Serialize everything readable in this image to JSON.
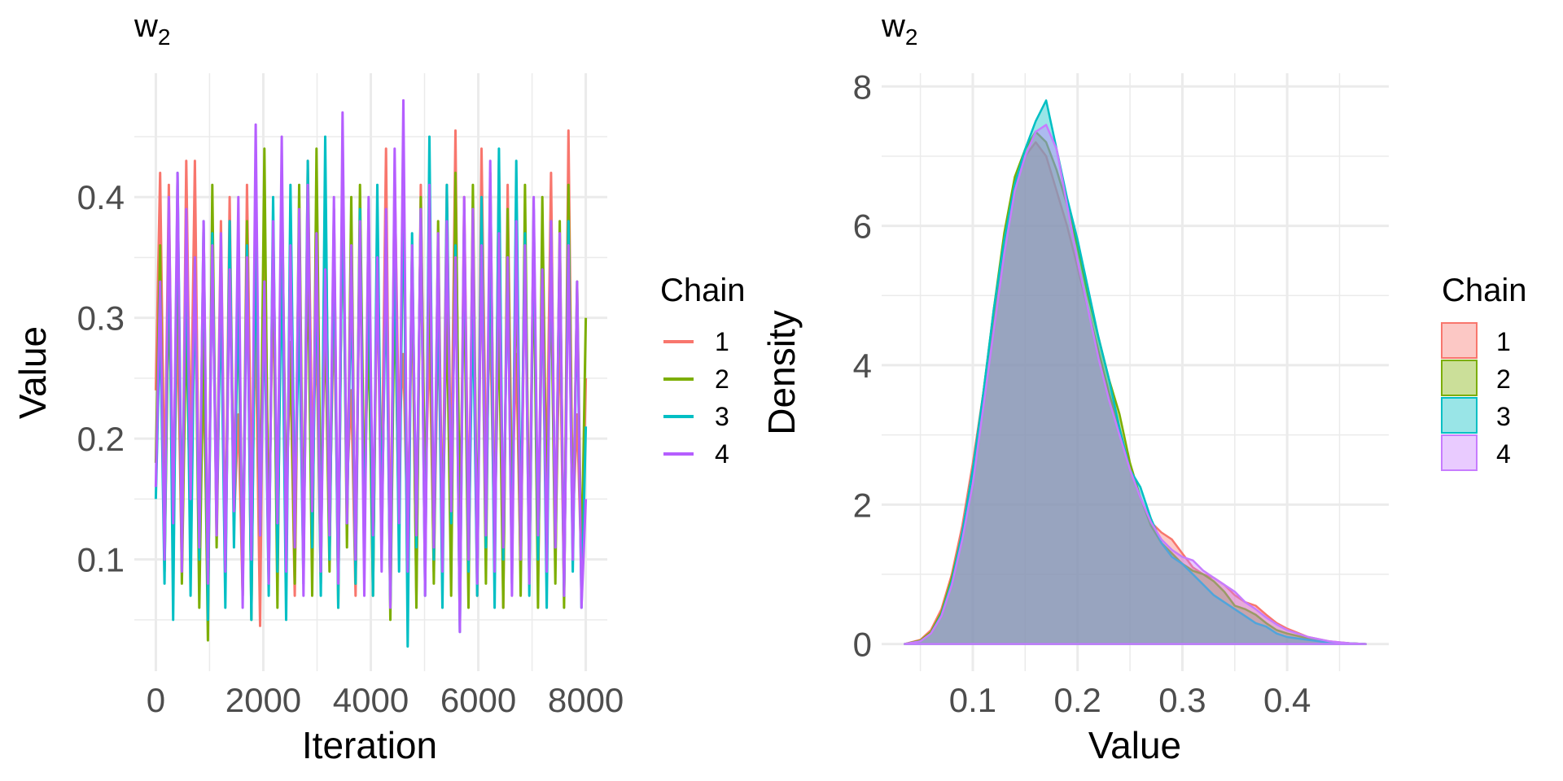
{
  "chart_data": [
    {
      "type": "line",
      "title": "w",
      "title_subscript": "2",
      "xlabel": "Iteration",
      "ylabel": "Value",
      "xlim": [
        0,
        8000
      ],
      "ylim": [
        0.03,
        0.48
      ],
      "xticks": [
        0,
        2000,
        4000,
        6000,
        8000
      ],
      "xtick_labels": [
        "0",
        "2000",
        "4000",
        "6000",
        "8000"
      ],
      "yticks": [
        0.1,
        0.2,
        0.3,
        0.4
      ],
      "ytick_labels": [
        "0.1",
        "0.2",
        "0.3",
        "0.4"
      ],
      "grid": true,
      "legend": {
        "title": "Chain",
        "position": "right"
      },
      "series": [
        {
          "name": "1",
          "color": "#F8766D",
          "values": [
            0.24,
            0.42,
            0.15,
            0.41,
            0.12,
            0.3,
            0.09,
            0.43,
            0.18,
            0.43,
            0.11,
            0.25,
            0.08,
            0.37,
            0.14,
            0.38,
            0.1,
            0.4,
            0.13,
            0.22,
            0.07,
            0.41,
            0.16,
            0.29,
            0.045,
            0.4,
            0.12,
            0.33,
            0.09,
            0.39,
            0.15,
            0.26,
            0.07,
            0.36,
            0.11,
            0.43,
            0.19,
            0.28,
            0.08,
            0.42,
            0.13,
            0.31,
            0.1,
            0.4,
            0.16,
            0.24,
            0.07,
            0.38,
            0.12,
            0.39,
            0.09,
            0.34,
            0.15,
            0.44,
            0.08,
            0.42,
            0.2,
            0.27,
            0.11,
            0.33,
            0.07,
            0.41,
            0.14,
            0.29,
            0.09,
            0.3,
            0.12,
            0.41,
            0.16,
            0.455,
            0.08,
            0.4,
            0.13,
            0.35,
            0.07,
            0.44,
            0.18,
            0.3,
            0.1,
            0.43,
            0.06,
            0.41,
            0.15,
            0.27,
            0.09,
            0.36,
            0.12,
            0.38,
            0.08,
            0.33,
            0.17,
            0.42,
            0.1,
            0.3,
            0.07,
            0.455,
            0.13,
            0.22,
            0.09,
            0.25
          ]
        },
        {
          "name": "2",
          "color": "#7CAE00",
          "values": [
            0.18,
            0.36,
            0.09,
            0.33,
            0.14,
            0.38,
            0.08,
            0.3,
            0.12,
            0.35,
            0.06,
            0.29,
            0.033,
            0.41,
            0.11,
            0.34,
            0.08,
            0.36,
            0.15,
            0.31,
            0.07,
            0.38,
            0.05,
            0.39,
            0.12,
            0.44,
            0.09,
            0.37,
            0.06,
            0.42,
            0.14,
            0.28,
            0.08,
            0.41,
            0.1,
            0.36,
            0.07,
            0.44,
            0.13,
            0.3,
            0.09,
            0.39,
            0.06,
            0.43,
            0.11,
            0.4,
            0.08,
            0.41,
            0.15,
            0.29,
            0.07,
            0.37,
            0.1,
            0.38,
            0.05,
            0.33,
            0.12,
            0.41,
            0.09,
            0.36,
            0.06,
            0.4,
            0.14,
            0.35,
            0.08,
            0.38,
            0.11,
            0.31,
            0.07,
            0.42,
            0.13,
            0.34,
            0.06,
            0.41,
            0.1,
            0.37,
            0.08,
            0.42,
            0.12,
            0.3,
            0.06,
            0.39,
            0.11,
            0.35,
            0.07,
            0.41,
            0.09,
            0.36,
            0.06,
            0.4,
            0.13,
            0.34,
            0.08,
            0.38,
            0.06,
            0.41,
            0.11,
            0.33,
            0.09,
            0.3
          ]
        },
        {
          "name": "3",
          "color": "#00BFC4",
          "values": [
            0.15,
            0.3,
            0.08,
            0.39,
            0.05,
            0.42,
            0.12,
            0.36,
            0.07,
            0.34,
            0.1,
            0.38,
            0.05,
            0.37,
            0.13,
            0.32,
            0.06,
            0.38,
            0.11,
            0.33,
            0.08,
            0.36,
            0.05,
            0.37,
            0.12,
            0.31,
            0.07,
            0.4,
            0.09,
            0.36,
            0.05,
            0.41,
            0.14,
            0.3,
            0.08,
            0.43,
            0.11,
            0.35,
            0.07,
            0.45,
            0.1,
            0.37,
            0.06,
            0.42,
            0.13,
            0.33,
            0.08,
            0.39,
            0.1,
            0.36,
            0.07,
            0.41,
            0.12,
            0.34,
            0.06,
            0.38,
            0.09,
            0.44,
            0.028,
            0.37,
            0.11,
            0.39,
            0.07,
            0.45,
            0.1,
            0.33,
            0.06,
            0.41,
            0.13,
            0.36,
            0.04,
            0.39,
            0.09,
            0.32,
            0.07,
            0.4,
            0.11,
            0.38,
            0.06,
            0.44,
            0.1,
            0.35,
            0.08,
            0.43,
            0.12,
            0.37,
            0.07,
            0.39,
            0.1,
            0.34,
            0.06,
            0.38,
            0.11,
            0.36,
            0.07,
            0.38,
            0.09,
            0.32,
            0.06,
            0.21
          ]
        },
        {
          "name": "4",
          "color": "#B55EFF",
          "values": [
            0.16,
            0.33,
            0.1,
            0.4,
            0.13,
            0.42,
            0.09,
            0.39,
            0.15,
            0.35,
            0.11,
            0.38,
            0.08,
            0.36,
            0.12,
            0.37,
            0.09,
            0.34,
            0.14,
            0.4,
            0.06,
            0.35,
            0.1,
            0.46,
            0.12,
            0.33,
            0.08,
            0.38,
            0.13,
            0.45,
            0.09,
            0.36,
            0.11,
            0.39,
            0.07,
            0.41,
            0.14,
            0.37,
            0.09,
            0.34,
            0.12,
            0.4,
            0.08,
            0.47,
            0.13,
            0.36,
            0.1,
            0.38,
            0.07,
            0.4,
            0.12,
            0.35,
            0.09,
            0.39,
            0.06,
            0.44,
            0.13,
            0.48,
            0.09,
            0.36,
            0.12,
            0.39,
            0.07,
            0.41,
            0.11,
            0.37,
            0.09,
            0.38,
            0.14,
            0.35,
            0.04,
            0.4,
            0.1,
            0.39,
            0.08,
            0.36,
            0.12,
            0.43,
            0.09,
            0.37,
            0.11,
            0.35,
            0.07,
            0.38,
            0.1,
            0.36,
            0.08,
            0.4,
            0.12,
            0.34,
            0.09,
            0.38,
            0.11,
            0.37,
            0.07,
            0.36,
            0.1,
            0.33,
            0.06,
            0.15
          ]
        }
      ]
    },
    {
      "type": "area",
      "title": "w",
      "title_subscript": "2",
      "xlabel": "Value",
      "ylabel": "Density",
      "xlim": [
        0.035,
        0.475
      ],
      "ylim": [
        0,
        7.8
      ],
      "xticks": [
        0.1,
        0.2,
        0.3,
        0.4
      ],
      "xtick_labels": [
        "0.1",
        "0.2",
        "0.3",
        "0.4"
      ],
      "yticks": [
        0,
        2,
        4,
        6,
        8
      ],
      "ytick_labels": [
        "0",
        "2",
        "4",
        "6",
        "8"
      ],
      "grid": true,
      "fill_alpha": 0.4,
      "legend": {
        "title": "Chain",
        "position": "right"
      },
      "x": [
        0.035,
        0.05,
        0.06,
        0.07,
        0.08,
        0.09,
        0.1,
        0.11,
        0.12,
        0.13,
        0.14,
        0.15,
        0.16,
        0.17,
        0.18,
        0.19,
        0.2,
        0.21,
        0.22,
        0.23,
        0.24,
        0.25,
        0.26,
        0.27,
        0.28,
        0.29,
        0.3,
        0.31,
        0.32,
        0.33,
        0.34,
        0.35,
        0.36,
        0.37,
        0.38,
        0.39,
        0.4,
        0.42,
        0.44,
        0.46,
        0.475
      ],
      "series": [
        {
          "name": "1",
          "color": "#F8766D",
          "values": [
            0,
            0.06,
            0.2,
            0.5,
            1.0,
            1.7,
            2.6,
            3.6,
            4.7,
            5.8,
            6.6,
            7.0,
            7.2,
            7.0,
            6.5,
            6.0,
            5.4,
            4.8,
            4.2,
            3.6,
            3.1,
            2.5,
            2.1,
            1.75,
            1.6,
            1.5,
            1.3,
            1.1,
            1.0,
            0.95,
            0.85,
            0.7,
            0.6,
            0.55,
            0.42,
            0.3,
            0.22,
            0.1,
            0.04,
            0.01,
            0
          ]
        },
        {
          "name": "2",
          "color": "#7CAE00",
          "values": [
            0,
            0.05,
            0.17,
            0.45,
            0.95,
            1.6,
            2.5,
            3.6,
            4.8,
            5.9,
            6.7,
            7.1,
            7.35,
            7.2,
            6.8,
            6.3,
            5.7,
            5.0,
            4.4,
            3.8,
            3.3,
            2.6,
            2.1,
            1.7,
            1.45,
            1.3,
            1.15,
            1.05,
            1.0,
            0.9,
            0.75,
            0.55,
            0.5,
            0.42,
            0.3,
            0.2,
            0.15,
            0.08,
            0.03,
            0.01,
            0
          ]
        },
        {
          "name": "3",
          "color": "#00BFC4",
          "values": [
            0,
            0.04,
            0.15,
            0.42,
            0.9,
            1.6,
            2.5,
            3.6,
            4.8,
            5.8,
            6.6,
            7.1,
            7.5,
            7.8,
            7.1,
            6.4,
            5.8,
            5.1,
            4.4,
            3.8,
            3.1,
            2.5,
            2.25,
            1.8,
            1.45,
            1.25,
            1.15,
            1.0,
            0.85,
            0.7,
            0.6,
            0.5,
            0.4,
            0.3,
            0.25,
            0.15,
            0.1,
            0.06,
            0.02,
            0.01,
            0
          ]
        },
        {
          "name": "4",
          "color": "#C77CFF",
          "values": [
            0,
            0.04,
            0.15,
            0.4,
            0.85,
            1.5,
            2.3,
            3.4,
            4.5,
            5.6,
            6.5,
            7.0,
            7.35,
            7.45,
            7.1,
            6.3,
            5.5,
            4.8,
            4.1,
            3.5,
            3.0,
            2.5,
            2.1,
            1.75,
            1.5,
            1.35,
            1.25,
            1.2,
            1.05,
            0.95,
            0.85,
            0.75,
            0.6,
            0.5,
            0.38,
            0.28,
            0.2,
            0.1,
            0.04,
            0.01,
            0
          ]
        }
      ]
    }
  ]
}
